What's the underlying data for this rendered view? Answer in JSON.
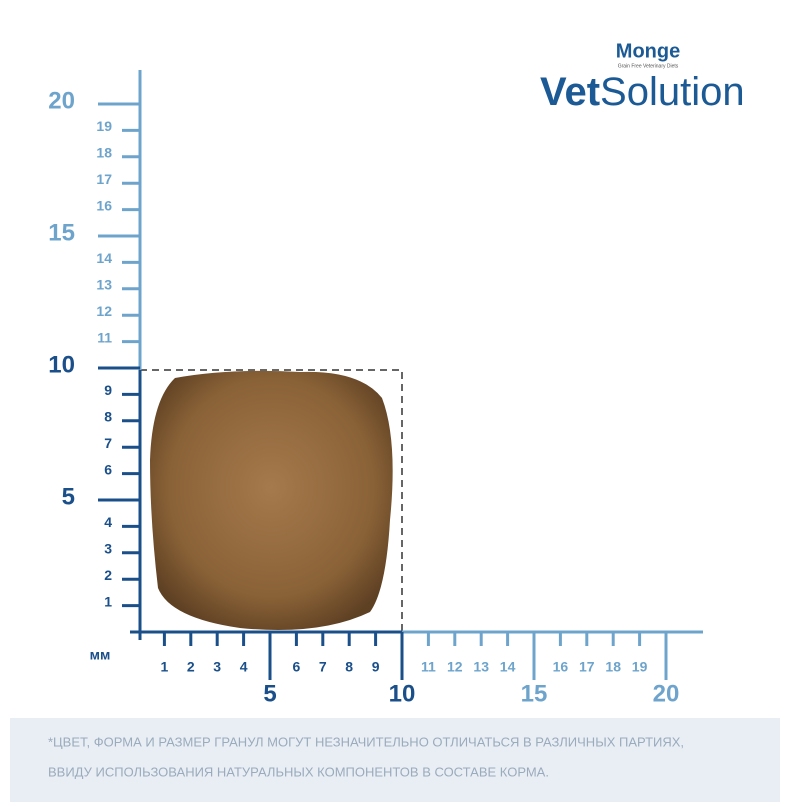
{
  "brand": {
    "maker": "Monge",
    "maker_tagline": "Grain Free Veterinary Diets",
    "line_bold": "Vet",
    "line_light": "Solution"
  },
  "ruler": {
    "unit": "мм",
    "y_major": [
      "5",
      "10",
      "15",
      "20"
    ],
    "y_minor": [
      "1",
      "2",
      "3",
      "4",
      "6",
      "7",
      "8",
      "9",
      "11",
      "12",
      "13",
      "14",
      "16",
      "17",
      "18",
      "19"
    ],
    "x_major": [
      "5",
      "10",
      "15",
      "20"
    ],
    "x_minor": [
      "1",
      "2",
      "3",
      "4",
      "6",
      "7",
      "8",
      "9",
      "11",
      "12",
      "13",
      "14",
      "16",
      "17",
      "18",
      "19"
    ]
  },
  "footnote": {
    "line1": "*ЦВЕТ, ФОРМА И РАЗМЕР ГРАНУЛ МОГУТ НЕЗНАЧИТЕЛЬНО ОТЛИЧАТЬСЯ В РАЗЛИЧНЫХ ПАРТИЯХ,",
    "line2": "ВВИДУ ИСПОЛЬЗОВАНИЯ НАТУРАЛЬНЫХ КОМПОНЕНТОВ В СОСТАВЕ КОРМА."
  }
}
